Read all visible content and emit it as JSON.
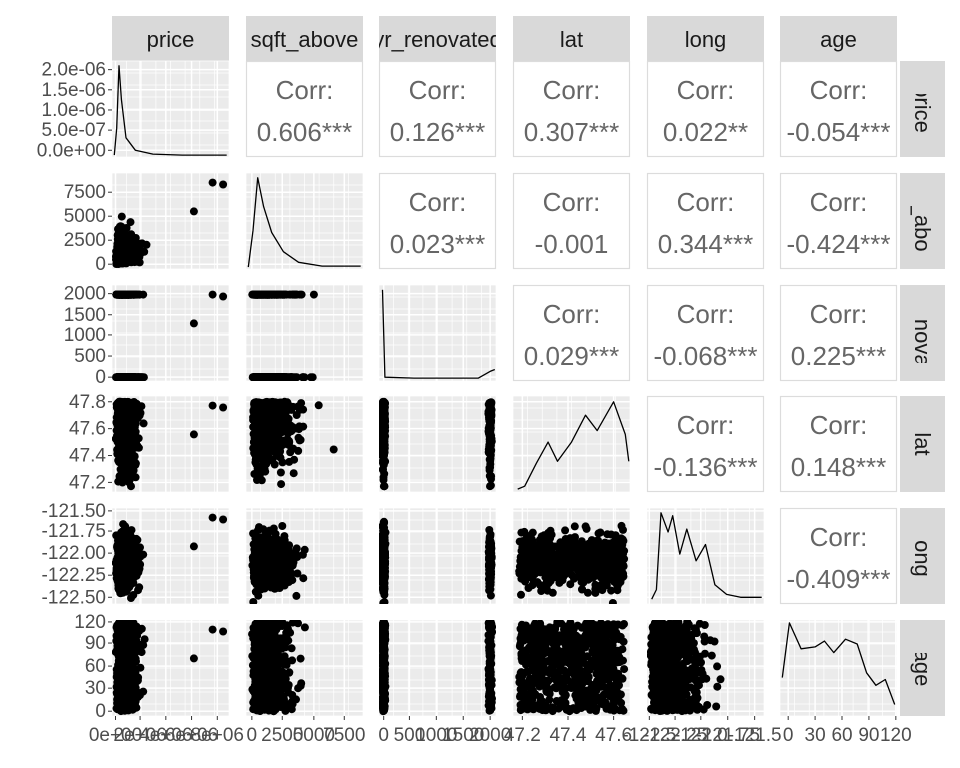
{
  "chart_data": {
    "type": "scatter-matrix",
    "variables": [
      "price",
      "sqft_above",
      "yr_renovated",
      "lat",
      "long",
      "age"
    ],
    "strip_labels": {
      "top": [
        "price",
        "sqft_above",
        "yr_renovated",
        "lat",
        "long",
        "age"
      ],
      "right": [
        "price",
        "sqft_above",
        "yr_renovated",
        "lat",
        "long",
        "age"
      ]
    },
    "y_axis_ticks": {
      "price": [
        "0.0e+00",
        "5.0e-07",
        "1.0e-06",
        "1.5e-06",
        "2.0e-06"
      ],
      "sqft_above": [
        "0",
        "2500",
        "5000",
        "7500"
      ],
      "yr_renovated": [
        "0",
        "500",
        "1000",
        "1500",
        "2000"
      ],
      "lat": [
        "47.2",
        "47.4",
        "47.6",
        "47.8"
      ],
      "long": [
        "-122.50",
        "-122.25",
        "-122.00",
        "-121.75",
        "-121.50"
      ],
      "age": [
        "0",
        "30",
        "60",
        "90",
        "120"
      ]
    },
    "x_axis_ticks": {
      "price": [
        "0e+00",
        "2e+06",
        "4e+06",
        "6e+06",
        "8e+06"
      ],
      "sqft_above": [
        "0",
        "2500",
        "5000",
        "7500"
      ],
      "yr_renovated": [
        "0",
        "500",
        "1000",
        "1500",
        "2000"
      ],
      "lat": [
        "47.2",
        "47.4",
        "47.6"
      ],
      "long": [
        "-122.5",
        "-122.25",
        "-122.0",
        "-121.75",
        "-121.5"
      ],
      "age": [
        "0",
        "30",
        "60",
        "90",
        "120"
      ]
    },
    "correlations": [
      {
        "row": "sqft_above",
        "col": "price",
        "label": "Corr:",
        "value": "0.606***"
      },
      {
        "row": "yr_renovated",
        "col": "price",
        "label": "Corr:",
        "value": "0.126***"
      },
      {
        "row": "lat",
        "col": "price",
        "label": "Corr:",
        "value": "0.307***"
      },
      {
        "row": "long",
        "col": "price",
        "label": "Corr:",
        "value": "0.022**"
      },
      {
        "row": "age",
        "col": "price",
        "label": "Corr:",
        "value": "-0.054***"
      },
      {
        "row": "yr_renovated",
        "col": "sqft_above",
        "label": "Corr:",
        "value": "0.023***"
      },
      {
        "row": "lat",
        "col": "sqft_above",
        "label": "Corr:",
        "value": "-0.001"
      },
      {
        "row": "long",
        "col": "sqft_above",
        "label": "Corr:",
        "value": "0.344***"
      },
      {
        "row": "age",
        "col": "sqft_above",
        "label": "Corr:",
        "value": "-0.424***"
      },
      {
        "row": "lat",
        "col": "yr_renovated",
        "label": "Corr:",
        "value": "0.029***"
      },
      {
        "row": "long",
        "col": "yr_renovated",
        "label": "Corr:",
        "value": "-0.068***"
      },
      {
        "row": "age",
        "col": "yr_renovated",
        "label": "Corr:",
        "value": "0.225***"
      },
      {
        "row": "long",
        "col": "lat",
        "label": "Corr:",
        "value": "-0.136***"
      },
      {
        "row": "age",
        "col": "lat",
        "label": "Corr:",
        "value": "0.148***"
      },
      {
        "row": "age",
        "col": "long",
        "label": "Corr:",
        "value": "-0.409***"
      }
    ],
    "diagonal": "density",
    "lower": "scatter",
    "upper": "correlation",
    "colors": {
      "panel_bg": "#ebebeb",
      "grid": "#ffffff",
      "strip_bg": "#d9d9d9",
      "point": "#000000",
      "corr_text": "#666666",
      "tick_text": "#4d4d4d",
      "strip_text": "#1a1a1a",
      "corr_border": "#dcdcdc"
    }
  }
}
